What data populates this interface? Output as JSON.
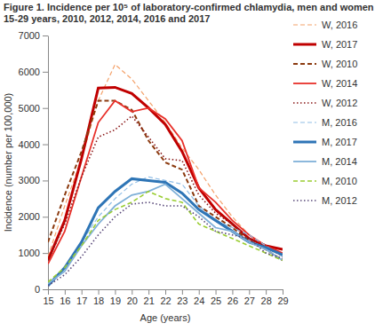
{
  "chart_data": {
    "type": "line",
    "title": "Figure 1. Incidence per 10⁵ of laboratory-confirmed chlamydia, men and women 15-29 years, 2010, 2012, 2014, 2016 and 2017",
    "x_label": "Age (years)",
    "y_label": "Incidence (number per 100,000)",
    "x": [
      15,
      16,
      17,
      18,
      19,
      20,
      21,
      22,
      23,
      24,
      25,
      26,
      27,
      28,
      29
    ],
    "xlim": [
      15,
      29
    ],
    "xticks": [
      15,
      16,
      17,
      18,
      19,
      20,
      21,
      22,
      23,
      24,
      25,
      26,
      27,
      28,
      29
    ],
    "ylim": [
      0,
      7000
    ],
    "yticks": [
      0,
      1000,
      2000,
      3000,
      4000,
      5000,
      6000,
      7000
    ],
    "grid": false,
    "legend": "right",
    "series": [
      {
        "name": "W, 2016",
        "color": "#f4a26b",
        "line_style": "dashed",
        "values": [
          900,
          2300,
          3600,
          5200,
          6200,
          5800,
          5200,
          4600,
          3900,
          3300,
          2600,
          2000,
          1500,
          1200,
          900
        ]
      },
      {
        "name": "W, 2017",
        "color": "#c00000",
        "line_style": "solid",
        "values": [
          800,
          1900,
          3600,
          5550,
          5570,
          5400,
          5000,
          4550,
          3800,
          2800,
          2200,
          1800,
          1400,
          1200,
          1100
        ]
      },
      {
        "name": "W, 2010",
        "color": "#8b3a0f",
        "line_style": "dashed",
        "values": [
          1300,
          2600,
          3800,
          5200,
          5200,
          4950,
          4100,
          3500,
          3300,
          2300,
          2000,
          1700,
          1350,
          1100,
          800
        ]
      },
      {
        "name": "W, 2014",
        "color": "#e8302a",
        "line_style": "solid",
        "values": [
          700,
          1600,
          3100,
          4600,
          5200,
          4900,
          5000,
          4700,
          4100,
          2800,
          2400,
          1900,
          1500,
          1200,
          1000
        ]
      },
      {
        "name": "W, 2012",
        "color": "#8b1a1a",
        "line_style": "dotted",
        "values": [
          800,
          1800,
          3100,
          4200,
          4400,
          4780,
          4200,
          3600,
          3550,
          2600,
          2100,
          1800,
          1400,
          1200,
          900
        ]
      },
      {
        "name": "M, 2016",
        "color": "#8fbde6",
        "line_style": "dashed",
        "values": [
          150,
          600,
          1300,
          2000,
          2500,
          2900,
          3100,
          3000,
          2900,
          2300,
          1900,
          1700,
          1500,
          1200,
          900
        ]
      },
      {
        "name": "M, 2017",
        "color": "#2e75b6",
        "line_style": "solid",
        "values": [
          100,
          600,
          1300,
          2250,
          2700,
          3050,
          3000,
          2950,
          2650,
          2200,
          1900,
          1600,
          1300,
          1150,
          950
        ]
      },
      {
        "name": "M, 2014",
        "color": "#7fb0d8",
        "line_style": "solid",
        "values": [
          150,
          500,
          1200,
          1800,
          2300,
          2600,
          2700,
          2900,
          2500,
          2100,
          1700,
          1600,
          1300,
          1100,
          800
        ]
      },
      {
        "name": "M, 2010",
        "color": "#9acd32",
        "line_style": "dashed",
        "values": [
          200,
          600,
          1200,
          1900,
          2200,
          2400,
          2700,
          2500,
          2400,
          1800,
          1600,
          1400,
          1200,
          1000,
          800
        ]
      },
      {
        "name": "M, 2012",
        "color": "#5a4a7a",
        "line_style": "dotted",
        "values": [
          100,
          400,
          900,
          1500,
          2000,
          2350,
          2400,
          2300,
          2300,
          2000,
          1600,
          1500,
          1400,
          1000,
          850
        ]
      }
    ]
  }
}
